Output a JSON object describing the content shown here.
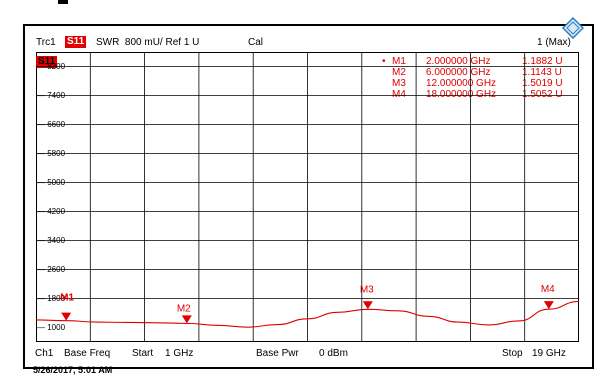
{
  "header": {
    "trace": "Trc1",
    "param": "S11",
    "format": "SWR",
    "scale": "800 mU/",
    "ref": "Ref 1 U",
    "cal": "Cal",
    "max": "1 (Max)"
  },
  "trace_label": "S11",
  "y_ticks": [
    "8200",
    "7400",
    "6600",
    "5800",
    "5000",
    "4200",
    "3400",
    "2600",
    "1800",
    "1000"
  ],
  "markers": [
    {
      "name": "M1",
      "active": "•",
      "freq": "2.000000 GHz",
      "value": "1.1882 U"
    },
    {
      "name": "M2",
      "active": "",
      "freq": "6.000000 GHz",
      "value": "1.1143 U"
    },
    {
      "name": "M3",
      "active": "",
      "freq": "12.000000 GHz",
      "value": "1.5019 U"
    },
    {
      "name": "M4",
      "active": "",
      "freq": "18.000000 GHz",
      "value": "1.5052 U"
    }
  ],
  "footer": {
    "channel": "Ch1",
    "base_freq": "Base Freq",
    "start": "Start",
    "start_val": "1 GHz",
    "base_pwr": "Base Pwr",
    "pwr_val": "0 dBm",
    "stop": "Stop",
    "stop_val": "19 GHz"
  },
  "timestamp": "5/26/2017, 5:01 AM",
  "colors": {
    "trace": "#e00000",
    "grid": "#000000",
    "logo": "#2a7fc1"
  },
  "logo_icon": "rohde-schwarz-diamond-logo",
  "chart_data": {
    "type": "line",
    "x_range_ghz": [
      1,
      19
    ],
    "y_range": [
      600,
      8600
    ],
    "series": [
      {
        "points": [
          [
            1,
            1210
          ],
          [
            2,
            1188
          ],
          [
            3,
            1150
          ],
          [
            4,
            1140
          ],
          [
            5,
            1130
          ],
          [
            6,
            1114
          ],
          [
            7,
            1060
          ],
          [
            8,
            1010
          ],
          [
            9,
            1080
          ],
          [
            10,
            1240
          ],
          [
            11,
            1420
          ],
          [
            12,
            1502
          ],
          [
            13,
            1460
          ],
          [
            14,
            1310
          ],
          [
            15,
            1150
          ],
          [
            16,
            1070
          ],
          [
            17,
            1180
          ],
          [
            18,
            1505
          ],
          [
            19,
            1720
          ]
        ]
      }
    ]
  }
}
